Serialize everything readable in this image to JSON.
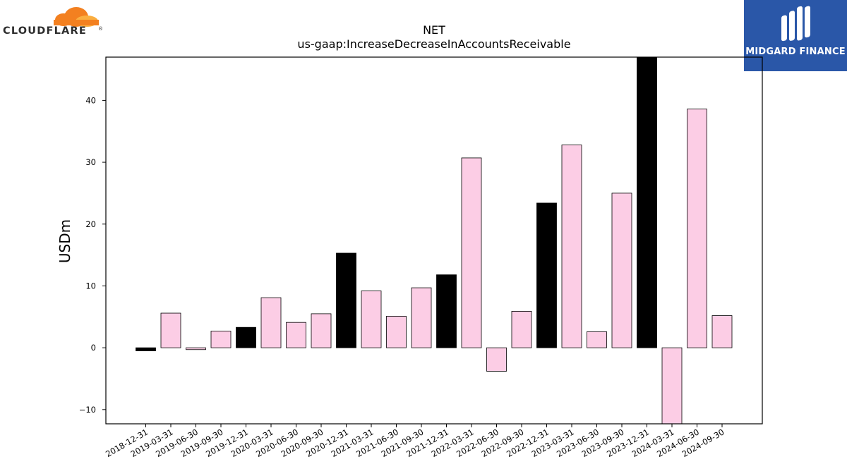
{
  "logos": {
    "left_text": "CLOUDFLARE",
    "left_registered": "®",
    "right_text": "MIDGARD FINANCE"
  },
  "colors": {
    "year_end_bar": "#000000",
    "quarter_bar": "#fccde5",
    "logo_orange": "#f38020",
    "logo_blue": "#2a57a8"
  },
  "chart_data": {
    "type": "bar",
    "title": "NET",
    "subtitle": "us-gaap:IncreaseDecreaseInAccountsReceivable",
    "xlabel": "",
    "ylabel": "USDm",
    "ylim": [
      -12.3,
      47
    ],
    "yticks": [
      -10,
      0,
      10,
      20,
      30,
      40
    ],
    "ytick_labels": [
      "−10",
      "0",
      "10",
      "20",
      "30",
      "40"
    ],
    "grid": false,
    "categories": [
      "2018-12-31",
      "2019-03-31",
      "2019-06-30",
      "2019-09-30",
      "2019-12-31",
      "2020-03-31",
      "2020-06-30",
      "2020-09-30",
      "2020-12-31",
      "2021-03-31",
      "2021-06-30",
      "2021-09-30",
      "2021-12-31",
      "2022-03-31",
      "2022-06-30",
      "2022-09-30",
      "2022-12-31",
      "2023-03-31",
      "2023-06-30",
      "2023-09-30",
      "2023-12-31",
      "2024-03-31",
      "2024-06-30",
      "2024-09-30"
    ],
    "values": [
      -0.5,
      5.6,
      -0.3,
      2.7,
      3.3,
      8.1,
      4.1,
      5.5,
      15.3,
      9.2,
      5.1,
      9.7,
      11.8,
      30.7,
      -3.8,
      5.9,
      23.4,
      32.8,
      2.6,
      25.0,
      48.0,
      -13.0,
      38.6,
      5.2
    ],
    "year_end": [
      true,
      false,
      false,
      false,
      true,
      false,
      false,
      false,
      true,
      false,
      false,
      false,
      true,
      false,
      false,
      false,
      true,
      false,
      false,
      false,
      true,
      false,
      false,
      false
    ]
  }
}
